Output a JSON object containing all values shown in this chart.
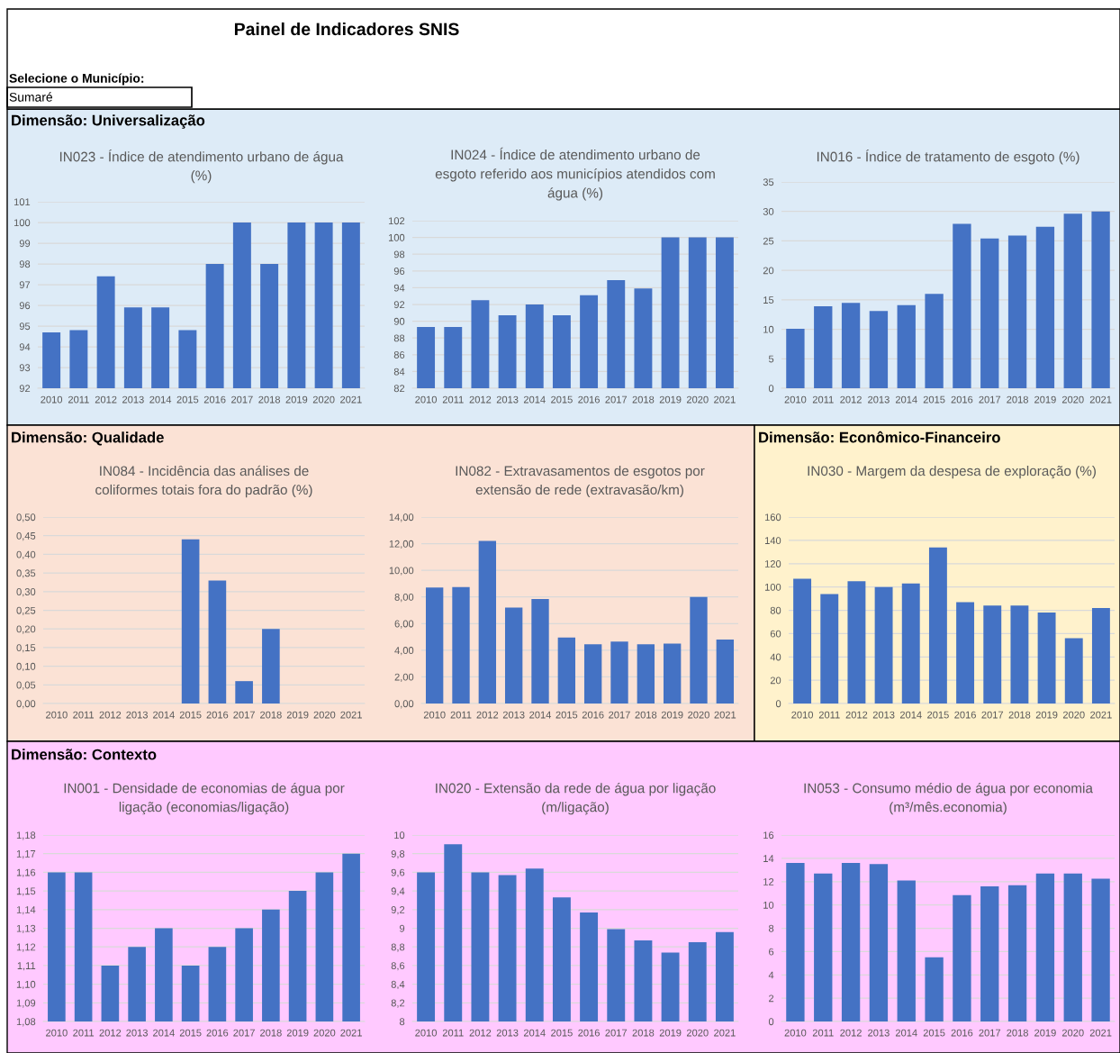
{
  "chart_data": [
    {
      "type": "other",
      "title": "Painel de Indicadores SNIS",
      "annotations": [
        "Selecione o Município:",
        "Sumaré"
      ]
    },
    {
      "type": "bar",
      "title": "IN023 - Índice de atendimento urbano de água (%)",
      "annotations": [
        "Dimensão: Universalização"
      ],
      "categories": [
        "2010",
        "2011",
        "2012",
        "2013",
        "2014",
        "2015",
        "2016",
        "2017",
        "2018",
        "2019",
        "2020",
        "2021"
      ],
      "values": [
        94.7,
        94.8,
        97.4,
        95.9,
        95.9,
        94.8,
        98.0,
        100,
        98.0,
        100,
        100,
        100
      ],
      "color": "#4472c4",
      "ylim": [
        92,
        101
      ],
      "yticks": [
        92,
        93,
        94,
        95,
        96,
        97,
        98,
        99,
        100,
        101
      ],
      "grid": "y"
    },
    {
      "type": "bar",
      "title": "IN024 - Índice de atendimento urbano de esgoto referido aos municípios atendidos com água (%)",
      "categories": [
        "2010",
        "2011",
        "2012",
        "2013",
        "2014",
        "2015",
        "2016",
        "2017",
        "2018",
        "2019",
        "2020",
        "2021"
      ],
      "values": [
        89.3,
        89.3,
        92.5,
        90.7,
        92.0,
        90.7,
        93.1,
        94.9,
        93.9,
        100,
        100,
        100
      ],
      "color": "#4472c4",
      "ylim": [
        82,
        102
      ],
      "yticks": [
        82,
        84,
        86,
        88,
        90,
        92,
        94,
        96,
        98,
        100,
        102
      ],
      "grid": "y"
    },
    {
      "type": "bar",
      "title": "IN016 - Índice de tratamento de esgoto (%)",
      "categories": [
        "2010",
        "2011",
        "2012",
        "2013",
        "2014",
        "2015",
        "2016",
        "2017",
        "2018",
        "2019",
        "2020",
        "2021"
      ],
      "values": [
        10.1,
        13.9,
        14.5,
        13.1,
        14.1,
        16.0,
        27.9,
        25.4,
        25.9,
        27.4,
        29.6,
        30.0
      ],
      "color": "#4472c4",
      "ylim": [
        0,
        35
      ],
      "yticks": [
        0,
        5,
        10,
        15,
        20,
        25,
        30,
        35
      ],
      "grid": "y"
    },
    {
      "type": "bar",
      "title": "IN084 - Incidência das análises de coliformes totais fora do padrão (%)",
      "annotations": [
        "Dimensão: Qualidade"
      ],
      "categories": [
        "2010",
        "2011",
        "2012",
        "2013",
        "2014",
        "2015",
        "2016",
        "2017",
        "2018",
        "2019",
        "2020",
        "2021"
      ],
      "values": [
        null,
        null,
        null,
        null,
        null,
        0.44,
        0.33,
        0.06,
        0.2,
        null,
        null,
        null
      ],
      "color": "#4472c4",
      "ylim": [
        0,
        0.5
      ],
      "yticks": [
        {
          "value": 0,
          "label": "0,00"
        },
        {
          "value": 0.05,
          "label": "0,05"
        },
        {
          "value": 0.1,
          "label": "0,10"
        },
        {
          "value": 0.15,
          "label": "0,15"
        },
        {
          "value": 0.2,
          "label": "0,20"
        },
        {
          "value": 0.25,
          "label": "0,25"
        },
        {
          "value": 0.3,
          "label": "0,30"
        },
        {
          "value": 0.35,
          "label": "0,35"
        },
        {
          "value": 0.4,
          "label": "0,40"
        },
        {
          "value": 0.45,
          "label": "0,45"
        },
        {
          "value": 0.5,
          "label": "0,50"
        }
      ],
      "grid": "y"
    },
    {
      "type": "bar",
      "title": "IN082 - Extravasamentos de esgotos por extensão de rede (extravasão/km)",
      "categories": [
        "2010",
        "2011",
        "2012",
        "2013",
        "2014",
        "2015",
        "2016",
        "2017",
        "2018",
        "2019",
        "2020",
        "2021"
      ],
      "values": [
        8.7,
        8.75,
        12.2,
        7.2,
        7.85,
        4.95,
        4.45,
        4.65,
        4.45,
        4.5,
        8.0,
        4.8
      ],
      "color": "#4472c4",
      "ylim": [
        0,
        14
      ],
      "yticks": [
        {
          "value": 0,
          "label": "0,00"
        },
        {
          "value": 2,
          "label": "2,00"
        },
        {
          "value": 4,
          "label": "4,00"
        },
        {
          "value": 6,
          "label": "6,00"
        },
        {
          "value": 8,
          "label": "8,00"
        },
        {
          "value": 10,
          "label": "10,00"
        },
        {
          "value": 12,
          "label": "12,00"
        },
        {
          "value": 14,
          "label": "14,00"
        }
      ],
      "grid": "y"
    },
    {
      "type": "bar",
      "title": "IN030 - Margem da despesa de exploração (%)",
      "annotations": [
        "Dimensão: Econômico-Financeiro"
      ],
      "categories": [
        "2010",
        "2011",
        "2012",
        "2013",
        "2014",
        "2015",
        "2016",
        "2017",
        "2018",
        "2019",
        "2020",
        "2021"
      ],
      "values": [
        107,
        94,
        105,
        100,
        103,
        134,
        87,
        84,
        84,
        78,
        56,
        82
      ],
      "color": "#4472c4",
      "ylim": [
        0,
        160
      ],
      "yticks": [
        0,
        20,
        40,
        60,
        80,
        100,
        120,
        140,
        160
      ],
      "grid": "y"
    },
    {
      "type": "bar",
      "title": "IN001 - Densidade de economias de água por ligação (economias/ligação)",
      "annotations": [
        "Dimensão: Contexto"
      ],
      "categories": [
        "2010",
        "2011",
        "2012",
        "2013",
        "2014",
        "2015",
        "2016",
        "2017",
        "2018",
        "2019",
        "2020",
        "2021"
      ],
      "values": [
        1.16,
        1.16,
        1.11,
        1.12,
        1.13,
        1.11,
        1.12,
        1.13,
        1.14,
        1.15,
        1.16,
        1.17
      ],
      "color": "#4472c4",
      "ylim": [
        1.08,
        1.18
      ],
      "yticks": [
        {
          "value": 1.08,
          "label": "1,08"
        },
        {
          "value": 1.09,
          "label": "1,09"
        },
        {
          "value": 1.1,
          "label": "1,10"
        },
        {
          "value": 1.11,
          "label": "1,11"
        },
        {
          "value": 1.12,
          "label": "1,12"
        },
        {
          "value": 1.13,
          "label": "1,13"
        },
        {
          "value": 1.14,
          "label": "1,14"
        },
        {
          "value": 1.15,
          "label": "1,15"
        },
        {
          "value": 1.16,
          "label": "1,16"
        },
        {
          "value": 1.17,
          "label": "1,17"
        },
        {
          "value": 1.18,
          "label": "1,18"
        }
      ],
      "grid": "y"
    },
    {
      "type": "bar",
      "title": "IN020 - Extensão da rede de água por ligação (m/ligação)",
      "categories": [
        "2010",
        "2011",
        "2012",
        "2013",
        "2014",
        "2015",
        "2016",
        "2017",
        "2018",
        "2019",
        "2020",
        "2021"
      ],
      "values": [
        9.6,
        9.9,
        9.6,
        9.57,
        9.64,
        9.33,
        9.17,
        8.99,
        8.87,
        8.74,
        8.85,
        8.96
      ],
      "color": "#4472c4",
      "ylim": [
        8,
        10
      ],
      "yticks": [
        8,
        {
          "value": 8.2,
          "label": "8,2"
        },
        {
          "value": 8.4,
          "label": "8,4"
        },
        {
          "value": 8.6,
          "label": "8,6"
        },
        {
          "value": 8.8,
          "label": "8,8"
        },
        9,
        {
          "value": 9.2,
          "label": "9,2"
        },
        {
          "value": 9.4,
          "label": "9,4"
        },
        {
          "value": 9.6,
          "label": "9,6"
        },
        {
          "value": 9.8,
          "label": "9,8"
        },
        10
      ],
      "grid": "y"
    },
    {
      "type": "bar",
      "title": "IN053 - Consumo médio de água por economia (m³/mês.economia)",
      "categories": [
        "2010",
        "2011",
        "2012",
        "2013",
        "2014",
        "2015",
        "2016",
        "2017",
        "2018",
        "2019",
        "2020",
        "2021"
      ],
      "values": [
        13.6,
        12.7,
        13.6,
        13.5,
        12.1,
        5.5,
        10.85,
        11.6,
        11.7,
        12.7,
        12.7,
        12.25
      ],
      "color": "#4472c4",
      "ylim": [
        0,
        16
      ],
      "yticks": [
        0,
        2,
        4,
        6,
        8,
        10,
        12,
        14,
        16
      ],
      "grid": "y"
    }
  ]
}
